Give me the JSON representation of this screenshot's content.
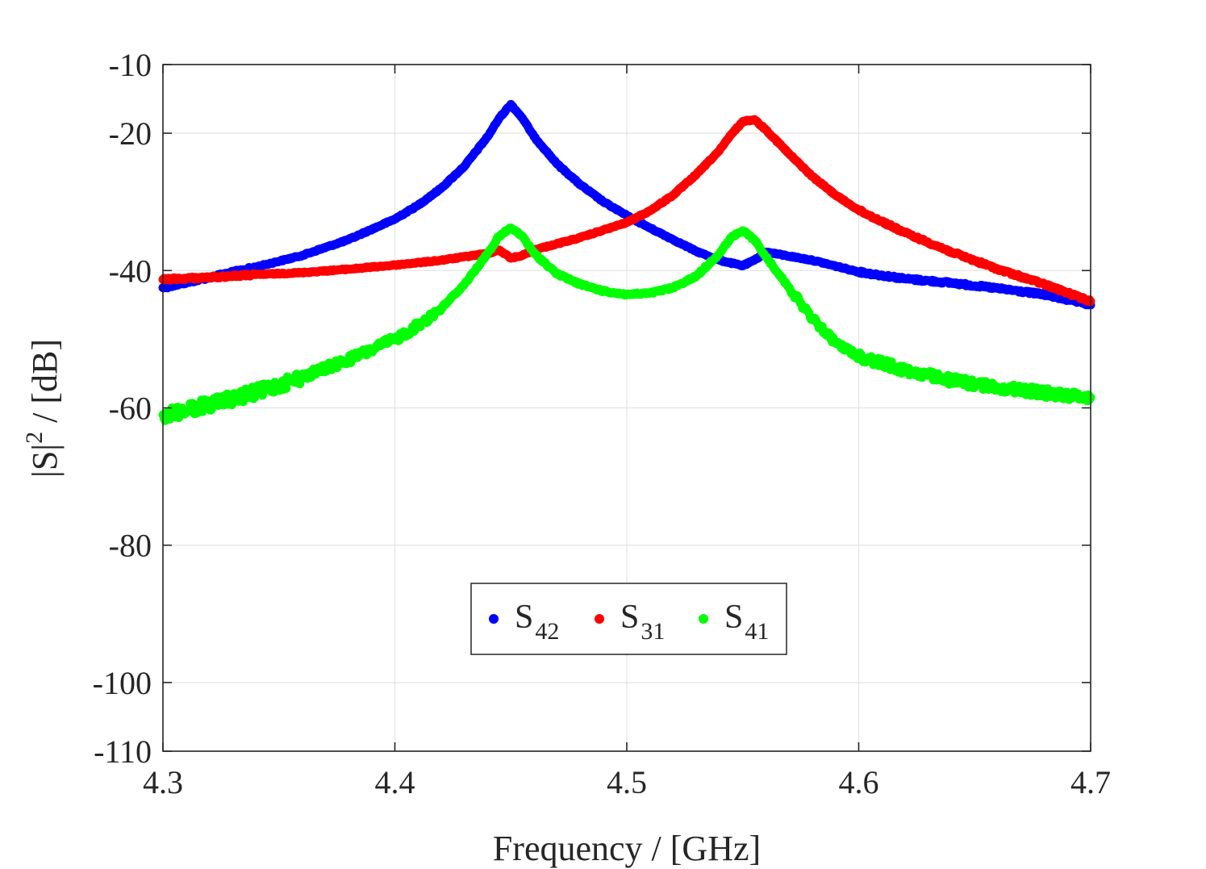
{
  "chart_data": {
    "type": "scatter",
    "title": "",
    "xlabel": "Frequency / [GHz]",
    "ylabel_main": "|S|",
    "ylabel_sup": "2",
    "ylabel_rest": " / [dB]",
    "xlim": [
      4.3,
      4.7
    ],
    "ylim": [
      -110,
      -10
    ],
    "xticks": [
      4.3,
      4.4,
      4.5,
      4.6,
      4.7
    ],
    "xtick_labels": [
      "4.3",
      "4.4",
      "4.5",
      "4.6",
      "4.7"
    ],
    "yticks": [
      -10,
      -20,
      -40,
      -60,
      -80,
      -100,
      -110
    ],
    "ytick_labels": [
      "-10",
      "-20",
      "-40",
      "-60",
      "-80",
      "-100",
      "-110"
    ],
    "grid": true,
    "legend_position": "bottom-center",
    "series": [
      {
        "name": "S42",
        "label_main": "S",
        "label_sub": "42",
        "color": "#0000ff",
        "x": [
          4.3,
          4.32,
          4.34,
          4.36,
          4.38,
          4.4,
          4.41,
          4.42,
          4.43,
          4.44,
          4.445,
          4.45,
          4.455,
          4.46,
          4.47,
          4.48,
          4.49,
          4.5,
          4.51,
          4.52,
          4.53,
          4.54,
          4.55,
          4.555,
          4.56,
          4.58,
          4.6,
          4.62,
          4.64,
          4.66,
          4.68,
          4.7
        ],
        "y": [
          -42.5,
          -41.0,
          -39.5,
          -37.8,
          -35.5,
          -32.5,
          -30.5,
          -28.0,
          -24.8,
          -20.5,
          -17.8,
          -15.8,
          -17.8,
          -20.5,
          -24.5,
          -27.5,
          -30.0,
          -32.0,
          -33.8,
          -35.5,
          -37.2,
          -38.5,
          -39.3,
          -38.5,
          -37.3,
          -38.5,
          -40.2,
          -41.2,
          -41.8,
          -42.6,
          -43.5,
          -45.0
        ]
      },
      {
        "name": "S31",
        "label_main": "S",
        "label_sub": "31",
        "color": "#ff0000",
        "x": [
          4.3,
          4.32,
          4.34,
          4.36,
          4.38,
          4.4,
          4.42,
          4.44,
          4.445,
          4.45,
          4.455,
          4.46,
          4.48,
          4.5,
          4.51,
          4.52,
          4.53,
          4.54,
          4.545,
          4.55,
          4.555,
          4.56,
          4.57,
          4.58,
          4.59,
          4.6,
          4.62,
          4.64,
          4.66,
          4.68,
          4.7
        ],
        "y": [
          -41.3,
          -41.0,
          -40.6,
          -40.3,
          -39.8,
          -39.2,
          -38.5,
          -37.5,
          -37.0,
          -38.2,
          -37.8,
          -37.0,
          -35.2,
          -33.0,
          -31.3,
          -29.0,
          -26.0,
          -22.5,
          -20.2,
          -18.3,
          -18.0,
          -19.5,
          -23.0,
          -26.3,
          -29.0,
          -31.2,
          -34.5,
          -37.3,
          -39.8,
          -42.0,
          -44.5
        ]
      },
      {
        "name": "S41",
        "label_main": "S",
        "label_sub": "41",
        "color": "#00ff00",
        "x": [
          4.3,
          4.32,
          4.34,
          4.36,
          4.38,
          4.4,
          4.41,
          4.42,
          4.43,
          4.44,
          4.445,
          4.45,
          4.455,
          4.46,
          4.47,
          4.48,
          4.49,
          4.5,
          4.51,
          4.52,
          4.53,
          4.54,
          4.545,
          4.55,
          4.555,
          4.56,
          4.57,
          4.58,
          4.59,
          4.6,
          4.62,
          4.64,
          4.66,
          4.68,
          4.7
        ],
        "y": [
          -61.0,
          -59.5,
          -57.8,
          -55.5,
          -53.0,
          -50.0,
          -48.0,
          -45.5,
          -42.0,
          -37.5,
          -35.0,
          -33.8,
          -35.0,
          -37.5,
          -40.5,
          -42.0,
          -43.0,
          -43.5,
          -43.3,
          -42.5,
          -40.8,
          -37.5,
          -35.2,
          -34.2,
          -35.5,
          -38.0,
          -42.5,
          -47.0,
          -50.5,
          -52.5,
          -54.5,
          -56.0,
          -57.0,
          -57.8,
          -58.5
        ]
      }
    ]
  }
}
